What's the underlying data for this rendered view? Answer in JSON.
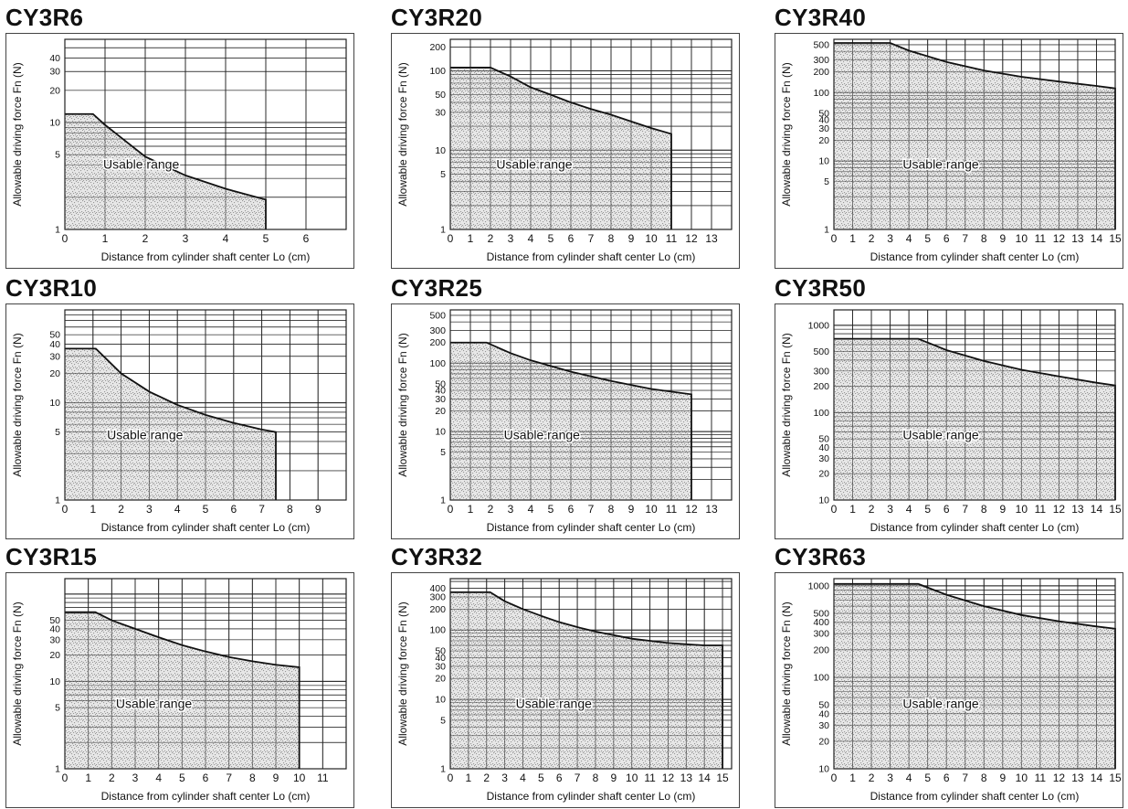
{
  "chart_data": [
    {
      "type": "area",
      "title": "CY3R6",
      "xlabel": "Distance from cylinder shaft center Lo (cm)",
      "ylabel": "Allowable driving force Fn (N)",
      "xlim": [
        0,
        7
      ],
      "ylim": [
        1,
        60
      ],
      "y_scale": "log",
      "x_ticks": [
        0,
        1,
        2,
        3,
        4,
        5,
        6
      ],
      "y_ticks": [
        1,
        5,
        10,
        20,
        30,
        40
      ],
      "annotation": "Usable range",
      "series": [
        {
          "x": [
            0,
            0.7,
            1,
            2,
            3,
            4,
            5,
            5
          ],
          "y": [
            12,
            12,
            9.5,
            4.8,
            3.2,
            2.4,
            1.9,
            1
          ]
        }
      ]
    },
    {
      "type": "area",
      "title": "CY3R20",
      "xlabel": "Distance from cylinder shaft center Lo (cm)",
      "ylabel": "Allowable driving force Fn (N)",
      "xlim": [
        0,
        14
      ],
      "ylim": [
        1,
        250
      ],
      "y_scale": "log",
      "x_ticks": [
        0,
        1,
        2,
        3,
        4,
        5,
        6,
        7,
        8,
        9,
        10,
        11,
        12,
        13
      ],
      "y_ticks": [
        1,
        5,
        10,
        30,
        50,
        100,
        200
      ],
      "annotation": "Usable range",
      "series": [
        {
          "x": [
            0,
            2,
            3,
            4,
            5,
            6,
            7,
            8,
            9,
            10,
            11,
            11
          ],
          "y": [
            110,
            110,
            85,
            62,
            50,
            40,
            33,
            28,
            23,
            19,
            16,
            1
          ]
        }
      ]
    },
    {
      "type": "area",
      "title": "CY3R40",
      "xlabel": "Distance from cylinder shaft center Lo (cm)",
      "ylabel": "Allowable driving force Fn (N)",
      "xlim": [
        0,
        15
      ],
      "ylim": [
        1,
        600
      ],
      "y_scale": "log",
      "x_ticks": [
        0,
        1,
        2,
        3,
        4,
        5,
        6,
        7,
        8,
        9,
        10,
        11,
        12,
        13,
        14,
        15
      ],
      "y_ticks": [
        1,
        5,
        10,
        20,
        30,
        40,
        50,
        100,
        200,
        300,
        500
      ],
      "annotation": "Usable range",
      "series": [
        {
          "x": [
            0,
            3,
            4,
            6,
            8,
            10,
            12,
            14,
            15,
            15
          ],
          "y": [
            530,
            530,
            410,
            280,
            210,
            170,
            145,
            125,
            115,
            1
          ]
        }
      ]
    },
    {
      "type": "area",
      "title": "CY3R10",
      "xlabel": "Distance from cylinder shaft center Lo (cm)",
      "ylabel": "Allowable driving force Fn (N)",
      "xlim": [
        0,
        10
      ],
      "ylim": [
        1,
        90
      ],
      "y_scale": "log",
      "x_ticks": [
        0,
        1,
        2,
        3,
        4,
        5,
        6,
        7,
        8,
        9
      ],
      "y_ticks": [
        1,
        5,
        10,
        20,
        30,
        40,
        50
      ],
      "annotation": "Usable range",
      "series": [
        {
          "x": [
            0,
            1.1,
            2,
            3,
            4,
            5,
            6,
            7,
            7.5,
            7.5
          ],
          "y": [
            36,
            36,
            20,
            13,
            9.5,
            7.5,
            6.2,
            5.3,
            5,
            1
          ]
        }
      ]
    },
    {
      "type": "area",
      "title": "CY3R25",
      "xlabel": "Distance from cylinder shaft center Lo (cm)",
      "ylabel": "Allowable driving force Fn (N)",
      "xlim": [
        0,
        14
      ],
      "ylim": [
        1,
        600
      ],
      "y_scale": "log",
      "x_ticks": [
        0,
        1,
        2,
        3,
        4,
        5,
        6,
        7,
        8,
        9,
        10,
        11,
        12,
        13
      ],
      "y_ticks": [
        1,
        5,
        10,
        20,
        30,
        40,
        50,
        100,
        200,
        300,
        500
      ],
      "annotation": "Usable range",
      "series": [
        {
          "x": [
            0,
            1.8,
            3,
            4,
            6,
            8,
            10,
            12,
            12
          ],
          "y": [
            200,
            200,
            140,
            110,
            75,
            55,
            42,
            35,
            1
          ]
        }
      ]
    },
    {
      "type": "area",
      "title": "CY3R50",
      "xlabel": "Distance from cylinder shaft center Lo (cm)",
      "ylabel": "Allowable driving force Fn (N)",
      "xlim": [
        0,
        15
      ],
      "ylim": [
        10,
        1500
      ],
      "y_scale": "log",
      "x_ticks": [
        0,
        1,
        2,
        3,
        4,
        5,
        6,
        7,
        8,
        9,
        10,
        11,
        12,
        13,
        14,
        15
      ],
      "y_ticks": [
        10,
        20,
        30,
        40,
        50,
        100,
        200,
        300,
        500,
        1000
      ],
      "annotation": "Usable range",
      "series": [
        {
          "x": [
            0,
            4.5,
            6,
            8,
            10,
            12,
            14,
            15,
            15
          ],
          "y": [
            700,
            700,
            520,
            390,
            310,
            260,
            220,
            205,
            10
          ]
        }
      ]
    },
    {
      "type": "area",
      "title": "CY3R15",
      "xlabel": "Distance from cylinder shaft center Lo (cm)",
      "ylabel": "Allowable driving force Fn (N)",
      "xlim": [
        0,
        12
      ],
      "ylim": [
        1,
        150
      ],
      "y_scale": "log",
      "x_ticks": [
        0,
        1,
        2,
        3,
        4,
        5,
        6,
        7,
        8,
        9,
        10,
        11
      ],
      "y_ticks": [
        1,
        5,
        10,
        20,
        30,
        40,
        50
      ],
      "annotation": "Usable range",
      "series": [
        {
          "x": [
            0,
            1.3,
            2,
            3,
            4,
            5,
            6,
            7,
            8,
            9,
            10,
            10
          ],
          "y": [
            62,
            62,
            50,
            40,
            32,
            26,
            22,
            19,
            17,
            15.5,
            14.5,
            1
          ]
        }
      ]
    },
    {
      "type": "area",
      "title": "CY3R32",
      "xlabel": "Distance from cylinder shaft center Lo (cm)",
      "ylabel": "Allowable driving force Fn (N)",
      "xlim": [
        0,
        15.5
      ],
      "ylim": [
        1,
        550
      ],
      "y_scale": "log",
      "x_ticks": [
        0,
        1,
        2,
        3,
        4,
        5,
        6,
        7,
        8,
        9,
        10,
        11,
        12,
        13,
        14,
        15
      ],
      "y_ticks": [
        1,
        5,
        10,
        20,
        30,
        40,
        50,
        100,
        200,
        300,
        400
      ],
      "annotation": "Usable range",
      "series": [
        {
          "x": [
            0,
            2.2,
            3,
            4,
            5,
            6,
            7,
            8,
            10,
            12,
            14,
            15,
            15
          ],
          "y": [
            350,
            350,
            260,
            200,
            160,
            130,
            110,
            95,
            75,
            65,
            60,
            60,
            1
          ]
        }
      ]
    },
    {
      "type": "area",
      "title": "CY3R63",
      "xlabel": "Distance from cylinder shaft center Lo (cm)",
      "ylabel": "Allowable driving force Fn (N)",
      "xlim": [
        0,
        15
      ],
      "ylim": [
        10,
        1200
      ],
      "y_scale": "log",
      "x_ticks": [
        0,
        1,
        2,
        3,
        4,
        5,
        6,
        7,
        8,
        9,
        10,
        11,
        12,
        13,
        14,
        15
      ],
      "y_ticks": [
        10,
        20,
        30,
        40,
        50,
        100,
        200,
        300,
        400,
        500,
        1000
      ],
      "annotation": "Usable range",
      "series": [
        {
          "x": [
            0,
            4.5,
            6,
            8,
            10,
            12,
            14,
            15,
            15
          ],
          "y": [
            1050,
            1050,
            800,
            600,
            480,
            410,
            360,
            340,
            10
          ]
        }
      ]
    }
  ],
  "colors": {
    "curve": "#111111",
    "grid": "#222222",
    "stipple": "#8c8c8c",
    "background": "#ffffff"
  }
}
